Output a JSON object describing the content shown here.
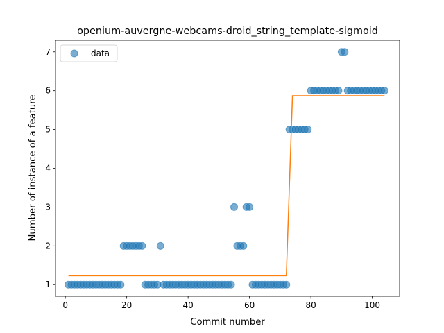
{
  "chart_data": {
    "type": "scatter",
    "title": "openium-auvergne-webcams-droid_string_template-sigmoid",
    "xlabel": "Commit number",
    "ylabel": "Number of instance of a feature",
    "xlim": [
      -3.2,
      108.9
    ],
    "ylim": [
      0.7,
      7.3
    ],
    "xticks": [
      0,
      20,
      40,
      60,
      80,
      100
    ],
    "yticks": [
      1,
      2,
      3,
      4,
      5,
      6,
      7
    ],
    "legend": {
      "placement": "top-left",
      "entries": [
        "data"
      ]
    },
    "grid": false,
    "colors": {
      "data": "#1f77b4",
      "fit": "#ff7f0e"
    },
    "series": [
      {
        "name": "data",
        "kind": "scatter",
        "points": [
          [
            1,
            1
          ],
          [
            2,
            1
          ],
          [
            3,
            1
          ],
          [
            4,
            1
          ],
          [
            5,
            1
          ],
          [
            6,
            1
          ],
          [
            7,
            1
          ],
          [
            8,
            1
          ],
          [
            9,
            1
          ],
          [
            10,
            1
          ],
          [
            11,
            1
          ],
          [
            12,
            1
          ],
          [
            13,
            1
          ],
          [
            14,
            1
          ],
          [
            15,
            1
          ],
          [
            16,
            1
          ],
          [
            17,
            1
          ],
          [
            18,
            1
          ],
          [
            19,
            2
          ],
          [
            20,
            2
          ],
          [
            21,
            2
          ],
          [
            22,
            2
          ],
          [
            23,
            2
          ],
          [
            24,
            2
          ],
          [
            25,
            2
          ],
          [
            26,
            1
          ],
          [
            27,
            1
          ],
          [
            28,
            1
          ],
          [
            29,
            1
          ],
          [
            30,
            1
          ],
          [
            31,
            2
          ],
          [
            32,
            1
          ],
          [
            33,
            1
          ],
          [
            34,
            1
          ],
          [
            35,
            1
          ],
          [
            36,
            1
          ],
          [
            37,
            1
          ],
          [
            38,
            1
          ],
          [
            39,
            1
          ],
          [
            40,
            1
          ],
          [
            41,
            1
          ],
          [
            42,
            1
          ],
          [
            43,
            1
          ],
          [
            44,
            1
          ],
          [
            45,
            1
          ],
          [
            46,
            1
          ],
          [
            47,
            1
          ],
          [
            48,
            1
          ],
          [
            49,
            1
          ],
          [
            50,
            1
          ],
          [
            51,
            1
          ],
          [
            52,
            1
          ],
          [
            53,
            1
          ],
          [
            54,
            1
          ],
          [
            55,
            3
          ],
          [
            56,
            2
          ],
          [
            57,
            2
          ],
          [
            58,
            2
          ],
          [
            59,
            3
          ],
          [
            60,
            3
          ],
          [
            61,
            1
          ],
          [
            62,
            1
          ],
          [
            63,
            1
          ],
          [
            64,
            1
          ],
          [
            65,
            1
          ],
          [
            66,
            1
          ],
          [
            67,
            1
          ],
          [
            68,
            1
          ],
          [
            69,
            1
          ],
          [
            70,
            1
          ],
          [
            71,
            1
          ],
          [
            72,
            1
          ],
          [
            73,
            5
          ],
          [
            74,
            5
          ],
          [
            75,
            5
          ],
          [
            76,
            5
          ],
          [
            77,
            5
          ],
          [
            78,
            5
          ],
          [
            79,
            5
          ],
          [
            80,
            6
          ],
          [
            81,
            6
          ],
          [
            82,
            6
          ],
          [
            83,
            6
          ],
          [
            84,
            6
          ],
          [
            85,
            6
          ],
          [
            86,
            6
          ],
          [
            87,
            6
          ],
          [
            88,
            6
          ],
          [
            89,
            6
          ],
          [
            90,
            7
          ],
          [
            91,
            7
          ],
          [
            92,
            6
          ],
          [
            93,
            6
          ],
          [
            94,
            6
          ],
          [
            95,
            6
          ],
          [
            96,
            6
          ],
          [
            97,
            6
          ],
          [
            98,
            6
          ],
          [
            99,
            6
          ],
          [
            100,
            6
          ],
          [
            101,
            6
          ],
          [
            102,
            6
          ],
          [
            103,
            6
          ],
          [
            104,
            6
          ]
        ]
      },
      {
        "kind": "line",
        "points": [
          [
            1,
            1.23
          ],
          [
            72,
            1.23
          ],
          [
            74,
            5.87
          ],
          [
            104,
            5.87
          ]
        ]
      }
    ]
  }
}
